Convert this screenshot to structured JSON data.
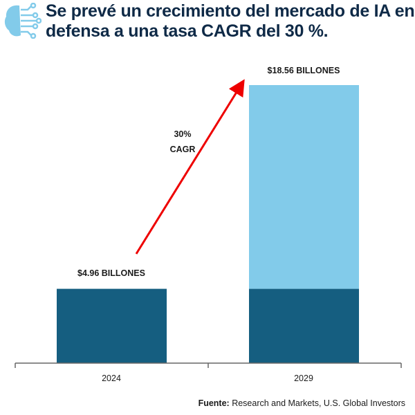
{
  "title": "Se prevé un crecimiento del mercado de IA en defensa a una tasa CAGR del 30 %.",
  "icon": "brain-circuit-icon",
  "source": {
    "label": "Fuente:",
    "text": " Research and Markets, U.S. Global Investors"
  },
  "colors": {
    "dark": "#155e80",
    "light": "#82cbea",
    "arrow": "#ee0000",
    "title": "#0f2a47"
  },
  "chart_data": {
    "type": "bar",
    "stacked": true,
    "categories": [
      "2024",
      "2029"
    ],
    "series": [
      {
        "values": [
          4.96,
          4.96
        ],
        "color": "#155e80"
      },
      {
        "values": [
          0,
          13.6
        ],
        "color": "#82cbea"
      }
    ],
    "totals": [
      4.96,
      18.56
    ],
    "data_labels": [
      "$4.96 BILLONES",
      "$18.56 BILLONES"
    ],
    "annotation": {
      "line1": "30%",
      "line2": "CAGR"
    },
    "ylim": [
      0,
      18.56
    ],
    "grid": false
  }
}
